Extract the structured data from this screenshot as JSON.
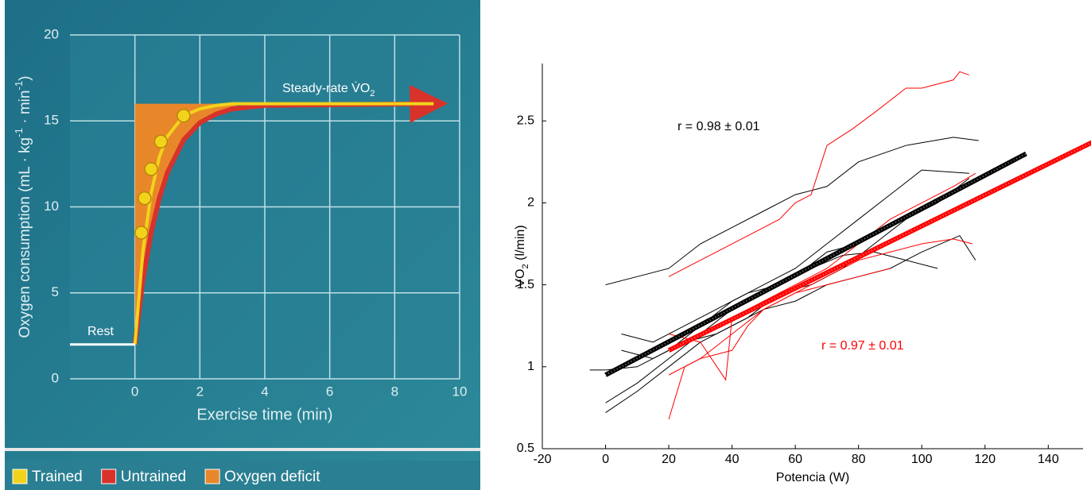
{
  "chart_data": [
    {
      "type": "line",
      "xlabel": "Exercise time (min)",
      "ylabel": [
        "Oxygen consumption (mL · kg",
        "-1",
        " · min",
        "-1",
        ")"
      ],
      "annotation": [
        "Steady-rate V̇O",
        "2"
      ],
      "xlim": [
        -2,
        10
      ],
      "ylim": [
        0,
        20
      ],
      "xticks": [
        0,
        2,
        4,
        6,
        8,
        10
      ],
      "yticks": [
        0,
        5,
        10,
        15,
        20
      ],
      "grid": true,
      "rest": {
        "label": "Rest",
        "x": [
          -2,
          0
        ],
        "values": [
          2,
          2
        ],
        "color": "#ffffff"
      },
      "series": [
        {
          "name": "Trained",
          "color": "#f2d31b",
          "x": [
            0,
            0.25,
            0.5,
            0.75,
            1,
            1.5,
            2,
            2.5,
            3,
            4,
            9.2
          ],
          "values": [
            2,
            7.5,
            10.8,
            12.9,
            14.1,
            15.3,
            15.7,
            15.9,
            16,
            16,
            16
          ]
        },
        {
          "name": "Untrained",
          "color": "#d8322a",
          "x": [
            0,
            0.25,
            0.5,
            0.75,
            1,
            1.5,
            2,
            2.5,
            3,
            4,
            9.2
          ],
          "values": [
            2,
            5.8,
            8.5,
            10.5,
            12.0,
            13.9,
            14.9,
            15.4,
            15.7,
            15.9,
            16
          ]
        },
        {
          "name": "Oxygen deficit",
          "color": "#e8872a",
          "x": [
            0,
            3.2
          ],
          "values": [
            16,
            16
          ]
        }
      ],
      "points": {
        "color": "#f2d31b",
        "x": [
          0.2,
          0.3,
          0.5,
          0.8,
          1.5
        ],
        "values": [
          8.5,
          10.5,
          12.2,
          13.8,
          15.3
        ]
      }
    },
    {
      "type": "line",
      "xlabel": "Potencia (W)",
      "ylabel": [
        "VO",
        "2",
        " (l/min)"
      ],
      "xlim": [
        -20,
        151
      ],
      "ylim": [
        0.5,
        2.85
      ],
      "xticks": [
        -20,
        0,
        20,
        40,
        60,
        80,
        100,
        120,
        140
      ],
      "yticks": [
        0.5,
        1,
        1.5,
        2,
        2.5
      ],
      "annotations": [
        {
          "text": "r = 0.98 ± 0.01",
          "color": "#000000"
        },
        {
          "text": "r = 0.97 ± 0.01",
          "color": "#ff0000"
        }
      ],
      "series": [
        {
          "color": "#000000",
          "x": [
            0,
            10,
            20,
            30,
            40,
            50,
            60,
            70,
            80,
            95,
            110,
            118
          ],
          "values": [
            1.5,
            1.55,
            1.6,
            1.75,
            1.85,
            1.95,
            2.05,
            2.1,
            2.25,
            2.35,
            2.4,
            2.38
          ]
        },
        {
          "color": "#000000",
          "x": [
            -5,
            0,
            10,
            20,
            30,
            40,
            50,
            60,
            70,
            80,
            90,
            100,
            115
          ],
          "values": [
            0.98,
            0.98,
            1.0,
            1.1,
            1.25,
            1.4,
            1.5,
            1.6,
            1.75,
            1.9,
            2.05,
            2.2,
            2.18
          ]
        },
        {
          "color": "#000000",
          "x": [
            5,
            15,
            25,
            35,
            45,
            55,
            65,
            75,
            85,
            95,
            105,
            115
          ],
          "values": [
            1.1,
            1.05,
            1.15,
            1.2,
            1.3,
            1.45,
            1.5,
            1.6,
            1.75,
            1.9,
            2.0,
            2.15
          ]
        },
        {
          "color": "#000000",
          "x": [
            0,
            10,
            20,
            30,
            40,
            50,
            60,
            70,
            80,
            90,
            100,
            112,
            117
          ],
          "values": [
            0.72,
            0.85,
            1.0,
            1.15,
            1.25,
            1.35,
            1.4,
            1.5,
            1.55,
            1.6,
            1.7,
            1.8,
            1.65
          ]
        },
        {
          "color": "#000000",
          "x": [
            0,
            10,
            20,
            30,
            40,
            50,
            60,
            70,
            80
          ],
          "values": [
            0.78,
            0.9,
            1.05,
            1.2,
            1.35,
            1.45,
            1.55,
            1.7,
            1.75
          ]
        },
        {
          "color": "#000000",
          "x": [
            5,
            15,
            25,
            35,
            45,
            55,
            65,
            75,
            85,
            95,
            105
          ],
          "values": [
            1.2,
            1.15,
            1.25,
            1.35,
            1.45,
            1.5,
            1.6,
            1.68,
            1.7,
            1.65,
            1.6
          ]
        },
        {
          "color": "#ff0000",
          "x": [
            20,
            25,
            30,
            40,
            50,
            55,
            60,
            65,
            70,
            78,
            85,
            95,
            100,
            110,
            112,
            115
          ],
          "values": [
            1.55,
            1.6,
            1.65,
            1.75,
            1.85,
            1.9,
            2.0,
            2.05,
            2.35,
            2.45,
            2.55,
            2.7,
            2.7,
            2.75,
            2.8,
            2.78
          ]
        },
        {
          "color": "#ff0000",
          "x": [
            20,
            30,
            40,
            50,
            60,
            70,
            80,
            90,
            100,
            110,
            116
          ],
          "values": [
            0.95,
            1.05,
            1.2,
            1.35,
            1.45,
            1.55,
            1.65,
            1.7,
            1.75,
            1.78,
            1.75
          ]
        },
        {
          "color": "#ff0000",
          "x": [
            20,
            25,
            30,
            40,
            45,
            50,
            60,
            70,
            80,
            90
          ],
          "values": [
            0.68,
            1.0,
            1.05,
            1.1,
            1.25,
            1.35,
            1.45,
            1.5,
            1.55,
            1.6
          ]
        },
        {
          "color": "#ff0000",
          "x": [
            20,
            30,
            38,
            40,
            50,
            60,
            70,
            80,
            90,
            100,
            110,
            117
          ],
          "values": [
            1.2,
            1.15,
            0.92,
            1.3,
            1.4,
            1.5,
            1.6,
            1.75,
            1.9,
            2.0,
            2.1,
            2.18
          ]
        }
      ],
      "fits": [
        {
          "color": "#000000",
          "x": [
            0,
            133
          ],
          "values": [
            0.95,
            2.3
          ]
        },
        {
          "color": "#ff0000",
          "x": [
            20,
            155
          ],
          "values": [
            1.1,
            2.38
          ]
        }
      ]
    }
  ]
}
